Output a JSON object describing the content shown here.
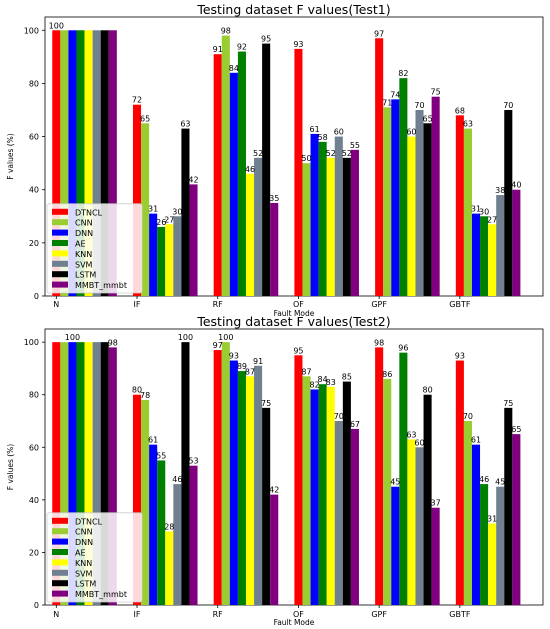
{
  "chart_data": [
    {
      "type": "bar",
      "title": "Testing dataset F values(Test1)",
      "xlabel": "Fault Mode",
      "ylabel": "F values (%)",
      "ylim": [
        0,
        105
      ],
      "yticks": [
        0,
        20,
        40,
        60,
        80,
        100
      ],
      "legend_position": "lower-left",
      "categories": [
        "N",
        "IF",
        "RF",
        "OF",
        "GPF",
        "GBTF"
      ],
      "series": [
        {
          "name": "DTNCL",
          "color": "#ff0000",
          "values": [
            100,
            72,
            91,
            93,
            97,
            68
          ]
        },
        {
          "name": "CNN",
          "color": "#9acd32",
          "values": [
            100,
            65,
            98,
            50,
            71,
            63
          ]
        },
        {
          "name": "DNN",
          "color": "#0000ff",
          "values": [
            100,
            31,
            84,
            61,
            74,
            31
          ]
        },
        {
          "name": "AE",
          "color": "#008000",
          "values": [
            100,
            26,
            92,
            58,
            82,
            30
          ]
        },
        {
          "name": "KNN",
          "color": "#ffff00",
          "values": [
            100,
            27,
            46,
            52,
            60,
            27
          ]
        },
        {
          "name": "SVM",
          "color": "#708090",
          "values": [
            100,
            30,
            52,
            60,
            70,
            38
          ]
        },
        {
          "name": "LSTM",
          "color": "#000000",
          "values": [
            100,
            63,
            95,
            52,
            65,
            70
          ]
        },
        {
          "name": "MMBT_mmbt",
          "color": "#800080",
          "values": [
            100,
            42,
            35,
            55,
            75,
            40
          ]
        }
      ],
      "bar_labels": [
        [
          100,
          72,
          91,
          93,
          97,
          68
        ],
        [
          null,
          65,
          98,
          50,
          71,
          63
        ],
        [
          null,
          31,
          84,
          61,
          74,
          31
        ],
        [
          null,
          26,
          92,
          58,
          82,
          30
        ],
        [
          null,
          27,
          46,
          52,
          60,
          27
        ],
        [
          null,
          30,
          52,
          60,
          70,
          38
        ],
        [
          null,
          63,
          95,
          52,
          65,
          70
        ],
        [
          null,
          42,
          35,
          55,
          75,
          40
        ]
      ]
    },
    {
      "type": "bar",
      "title": "Testing dataset F values(Test2)",
      "xlabel": "Fault Mode",
      "ylabel": "F values (%)",
      "ylim": [
        0,
        105
      ],
      "yticks": [
        0,
        20,
        40,
        60,
        80,
        100
      ],
      "legend_position": "lower-left",
      "categories": [
        "N",
        "IF",
        "RF",
        "OF",
        "GPF",
        "GBTF"
      ],
      "series": [
        {
          "name": "DTNCL",
          "color": "#ff0000",
          "values": [
            100,
            80,
            97,
            95,
            98,
            93
          ]
        },
        {
          "name": "CNN",
          "color": "#9acd32",
          "values": [
            100,
            78,
            100,
            87,
            86,
            70
          ]
        },
        {
          "name": "DNN",
          "color": "#0000ff",
          "values": [
            100,
            61,
            93,
            82,
            45,
            61
          ]
        },
        {
          "name": "AE",
          "color": "#008000",
          "values": [
            100,
            55,
            89,
            84,
            96,
            46
          ]
        },
        {
          "name": "KNN",
          "color": "#ffff00",
          "values": [
            100,
            28,
            87,
            83,
            63,
            31
          ]
        },
        {
          "name": "SVM",
          "color": "#708090",
          "values": [
            100,
            46,
            91,
            70,
            60,
            45
          ]
        },
        {
          "name": "LSTM",
          "color": "#000000",
          "values": [
            100,
            100,
            75,
            85,
            80,
            75
          ]
        },
        {
          "name": "MMBT_mmbt",
          "color": "#800080",
          "values": [
            98,
            53,
            42,
            67,
            37,
            65
          ]
        }
      ],
      "bar_labels": [
        [
          null,
          80,
          97,
          95,
          98,
          93
        ],
        [
          null,
          78,
          100,
          87,
          86,
          70
        ],
        [
          100,
          61,
          93,
          82,
          45,
          61
        ],
        [
          null,
          55,
          89,
          84,
          96,
          46
        ],
        [
          null,
          28,
          87,
          83,
          63,
          31
        ],
        [
          null,
          46,
          91,
          70,
          60,
          45
        ],
        [
          null,
          100,
          75,
          85,
          80,
          75
        ],
        [
          98,
          53,
          42,
          67,
          37,
          65
        ]
      ]
    }
  ]
}
